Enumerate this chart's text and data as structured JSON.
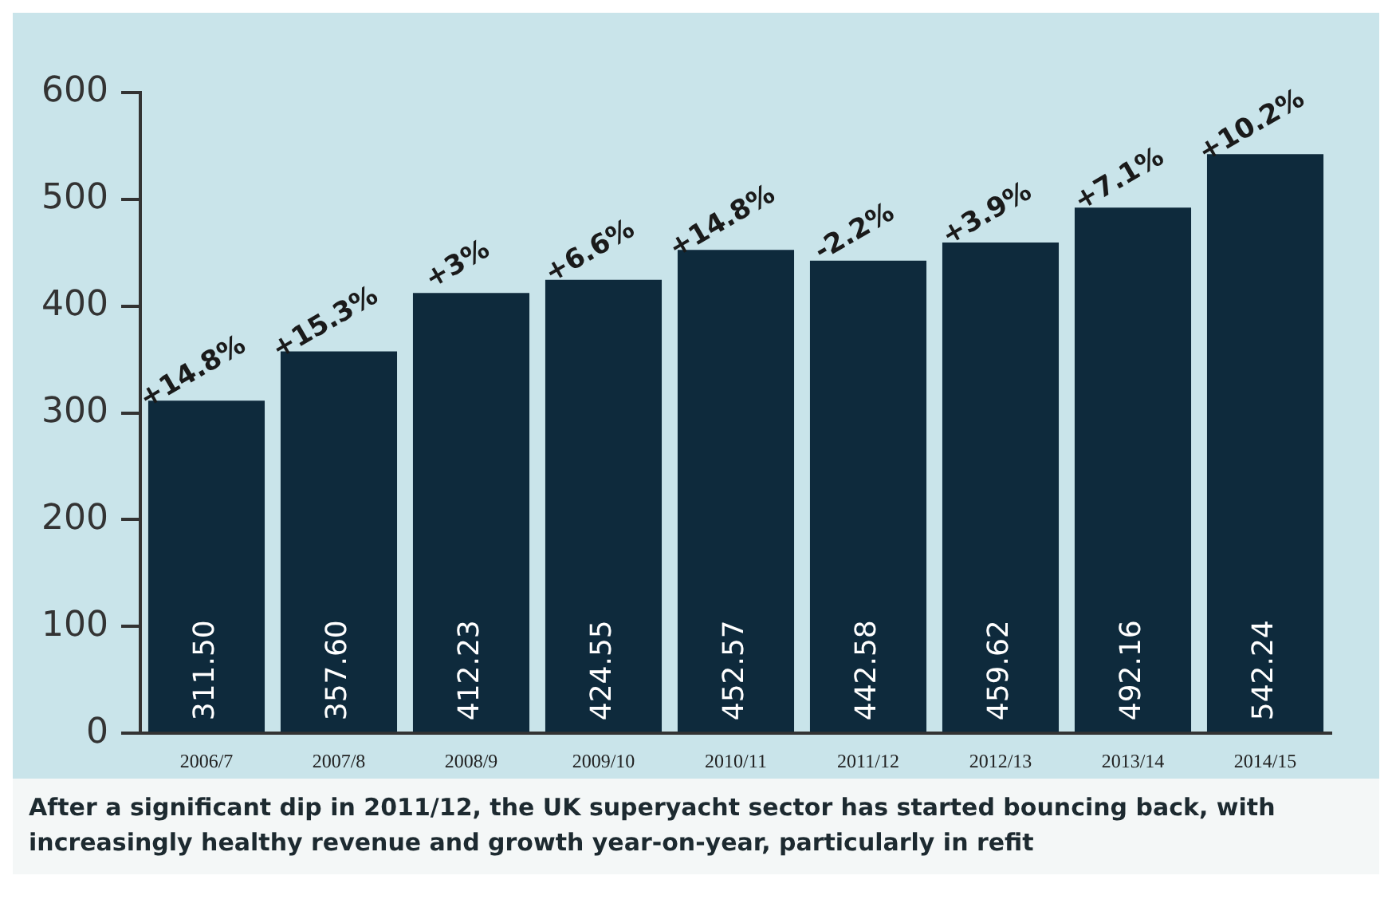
{
  "chart_data": {
    "type": "bar",
    "categories": [
      "2006/7",
      "2007/8",
      "2008/9",
      "2009/10",
      "2010/11",
      "2011/12",
      "2012/13",
      "2013/14",
      "2014/15"
    ],
    "values": [
      311.5,
      357.6,
      412.23,
      424.55,
      452.57,
      442.58,
      459.62,
      492.16,
      542.24
    ],
    "color": "#0e2a3c",
    "value_labels": [
      "311.50",
      "357.60",
      "412.23",
      "424.55",
      "452.57",
      "442.58",
      "459.62",
      "492.16",
      "542.24"
    ],
    "ylim": [
      0,
      600
    ],
    "yticks": [
      0,
      100,
      200,
      300,
      400,
      500,
      600
    ],
    "annotations": [
      {
        "text": "+14.8%",
        "x": "2006/7",
        "y": 311.5
      },
      {
        "text": "+15.3%",
        "x": "2007/8",
        "y": 357.6
      },
      {
        "text": "+3%",
        "x": "2008/9",
        "y": 412.23
      },
      {
        "text": "+6.6%",
        "x": "2009/10",
        "y": 424.55
      },
      {
        "text": "+14.8%",
        "x": "2010/11",
        "y": 452.57
      },
      {
        "text": "-2.2%",
        "x": "2011/12",
        "y": 442.58
      },
      {
        "text": "+3.9%",
        "x": "2012/13",
        "y": 459.62
      },
      {
        "text": "+7.1%",
        "x": "2013/14",
        "y": 492.16
      },
      {
        "text": "+10.2%",
        "x": "2014/15",
        "y": 542.24
      },
      "After a significant dip in 2011/12, the UK superyacht sector has started bouncing back, with increasingly healthy revenue and growth year-on-year, particularly in refit"
    ]
  }
}
